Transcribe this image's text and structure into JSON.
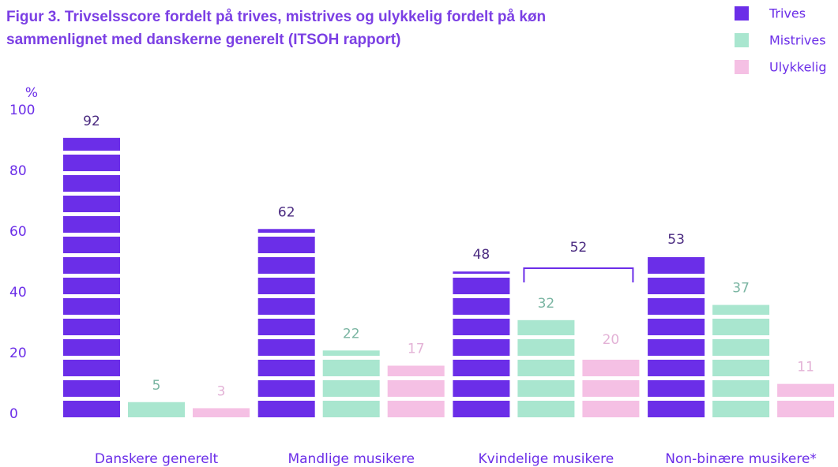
{
  "chart_data": {
    "type": "bar",
    "title": [
      "Figur 3. Trivselsscore fordelt på trives, mistrives og ulykkelig fordelt på køn",
      "sammenlignet med danskerne generelt (ITSOH rapport)"
    ],
    "y_label": "%",
    "categories": [
      "Danskere generelt",
      "Mandlige musikere",
      "Kvindelige musikere",
      "Non-binære musikere*"
    ],
    "series": [
      {
        "name": "Trives",
        "color": "#6b2ee8",
        "label_color": "#4a2a80",
        "values": [
          92,
          62,
          48,
          53
        ]
      },
      {
        "name": "Mistrives",
        "color": "#a9e6cf",
        "label_color": "#7ab5a2",
        "values": [
          5,
          22,
          32,
          37
        ]
      },
      {
        "name": "Ulykkelig",
        "color": "#f5c0e4",
        "label_color": "#e3b2d6",
        "values": [
          3,
          17,
          20,
          11
        ]
      }
    ],
    "bracket": {
      "category": 2,
      "series": [
        1,
        2
      ],
      "label": "52"
    },
    "ylim": [
      0,
      100
    ],
    "yticks": [
      0,
      20,
      40,
      60,
      80,
      100
    ],
    "grid": false,
    "legend": "top-right"
  }
}
